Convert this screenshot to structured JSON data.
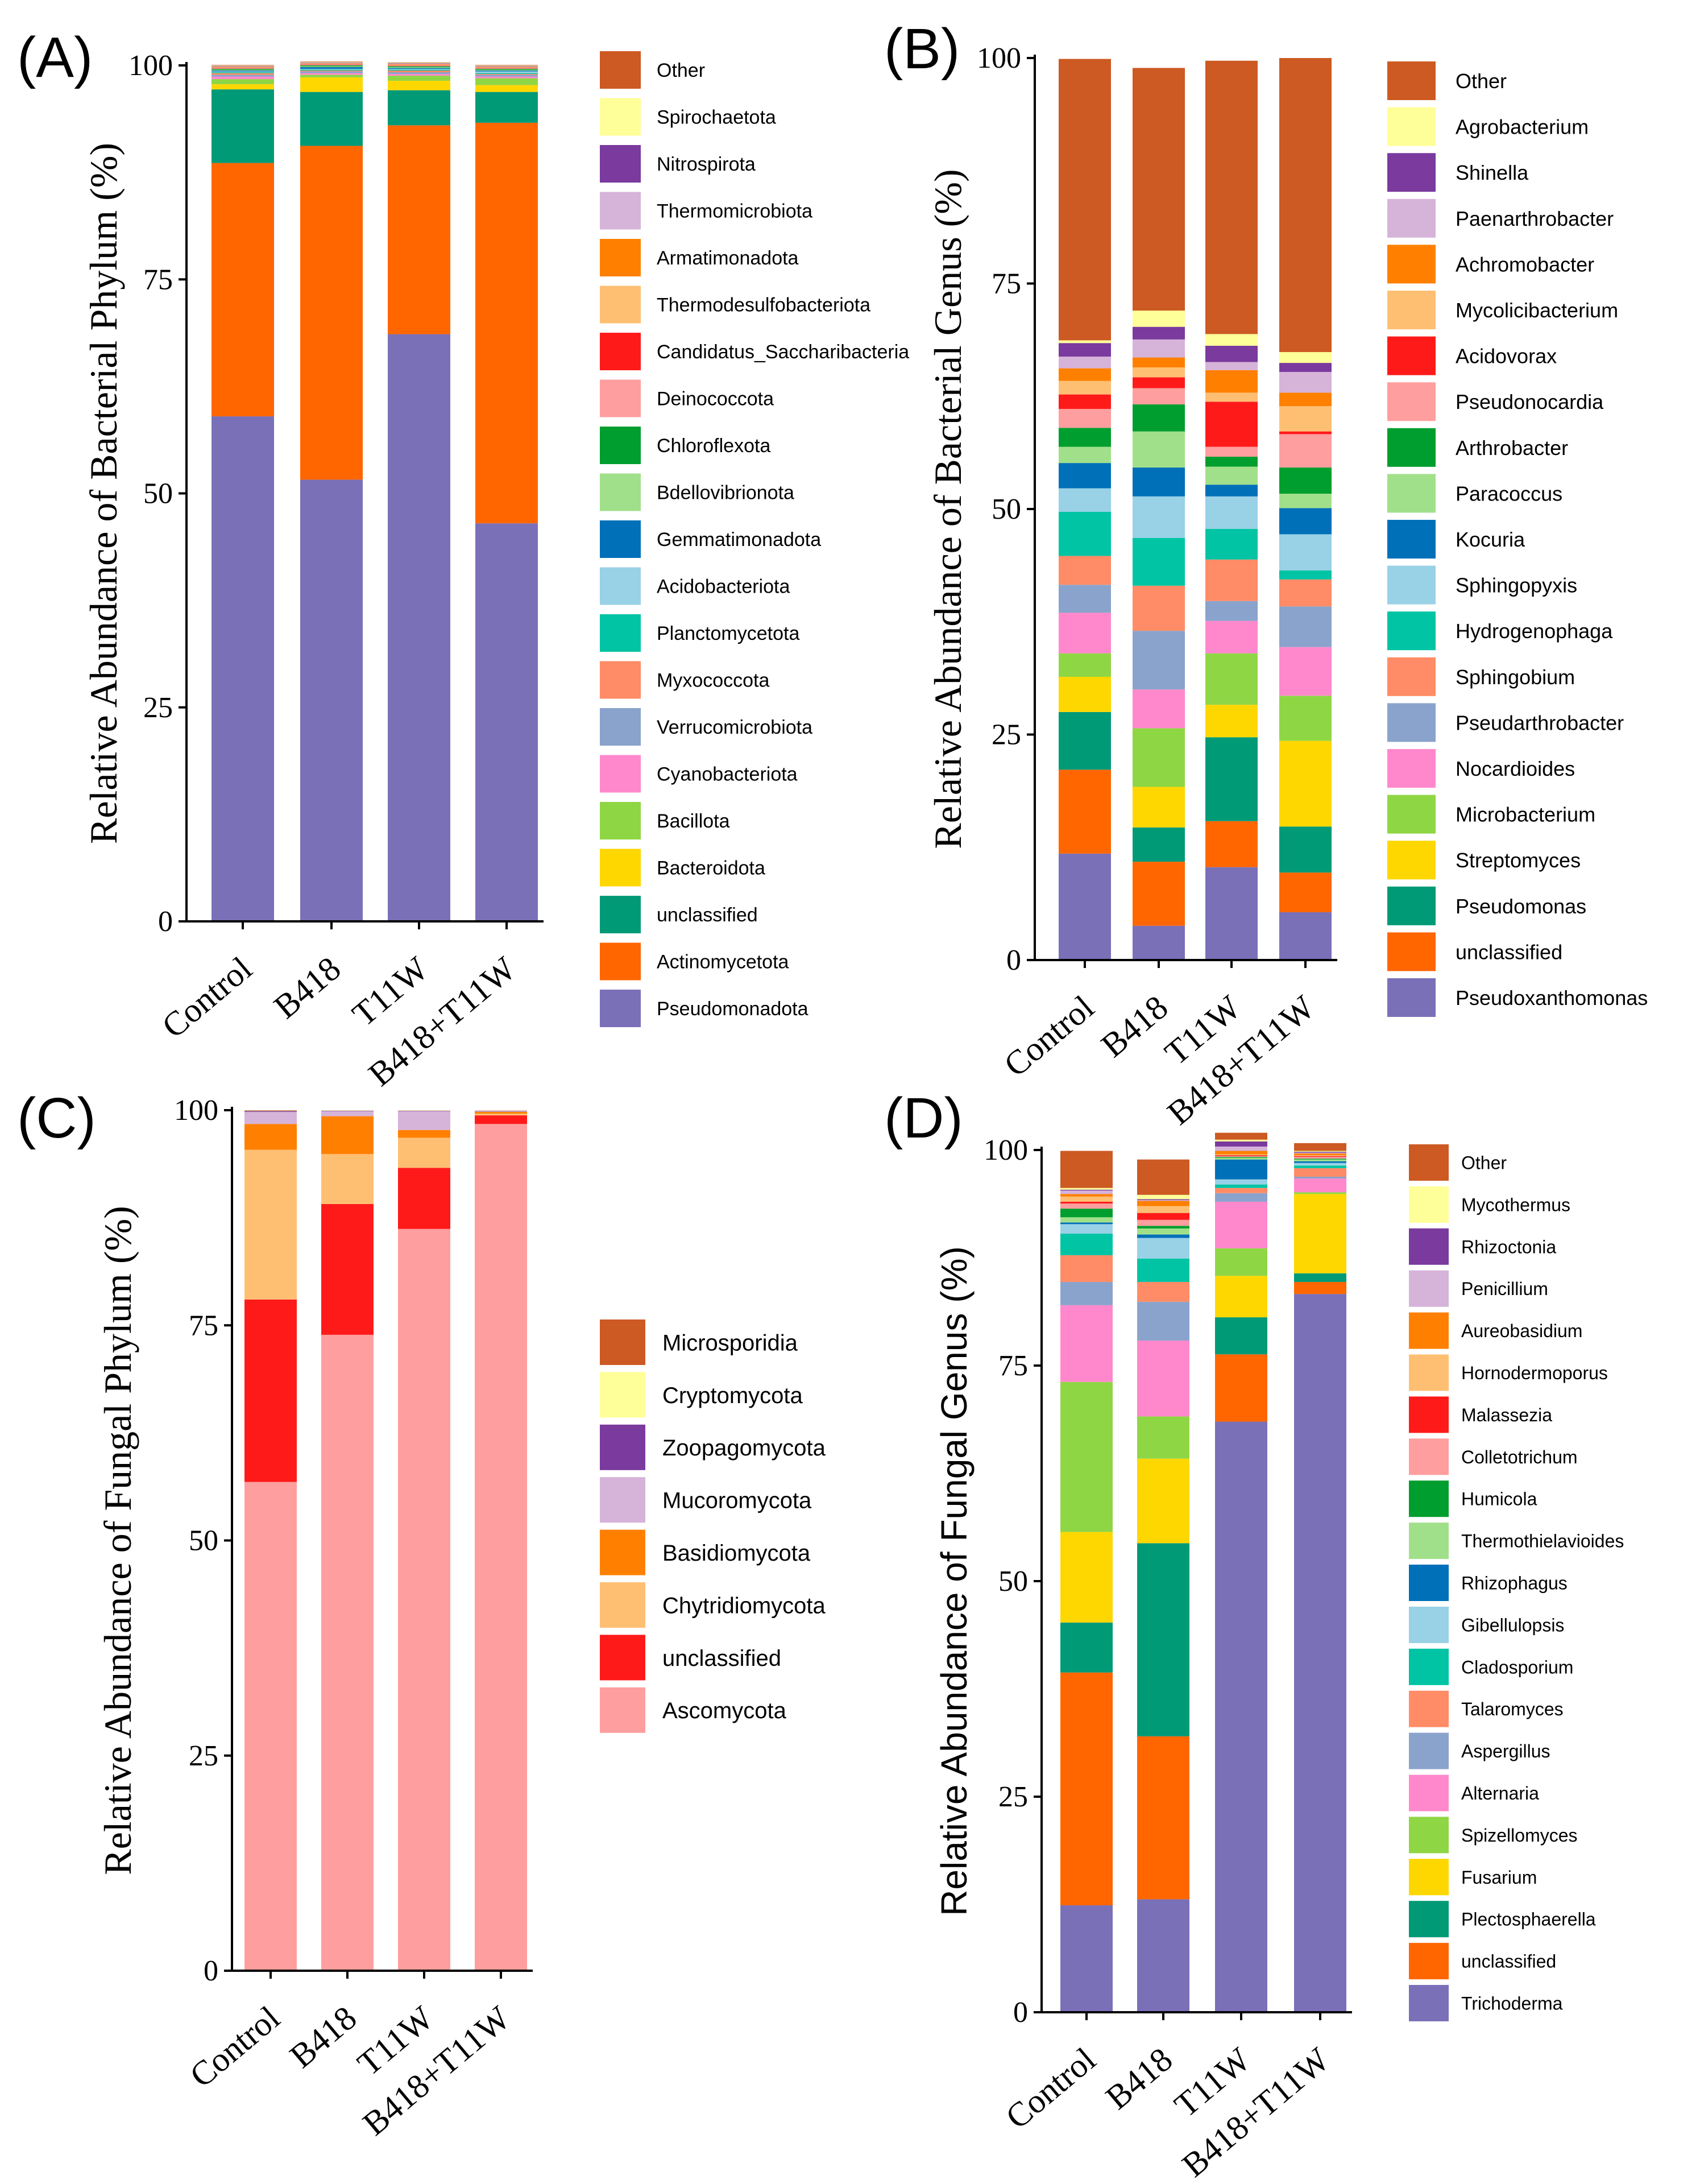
{
  "chart_data": [
    {
      "type": "stacked_bar",
      "panel": "(A)",
      "ylabel": "Relative Abundance of Bacterial Phylum (%)",
      "ylim": [
        0,
        100
      ],
      "yticks": [
        "0",
        "25",
        "50",
        "75",
        "100"
      ],
      "categories": [
        "Control",
        "B418",
        "T11W",
        "B418+T11W"
      ],
      "series": [
        {
          "name": "Pseudomonadota",
          "color": "#7a70b8",
          "values": [
            59,
            51.6,
            68.6,
            46.5
          ]
        },
        {
          "name": "Actinomycetota",
          "color": "#ff6600",
          "values": [
            29.6,
            39,
            24.4,
            46.8
          ]
        },
        {
          "name": "unclassified",
          "color": "#009a77",
          "values": [
            8.6,
            6.3,
            4.1,
            3.6
          ]
        },
        {
          "name": "Bacteroidota",
          "color": "#ffd700",
          "values": [
            0.6,
            1.7,
            1.1,
            0.8
          ]
        },
        {
          "name": "Bacillota",
          "color": "#8fd645",
          "values": [
            0.6,
            0.3,
            0.6,
            0.8
          ]
        },
        {
          "name": "Cyanobacteriota",
          "color": "#ff88cc",
          "values": [
            0.3,
            0.2,
            0.2,
            0.2
          ]
        },
        {
          "name": "Verrucomicrobiota",
          "color": "#8aa3cc",
          "values": [
            0.2,
            0.2,
            0.2,
            0.2
          ]
        },
        {
          "name": "Myxococcota",
          "color": "#ff8c66",
          "values": [
            0.2,
            0.1,
            0.2,
            0.1
          ]
        },
        {
          "name": "Planctomycetota",
          "color": "#00c4a4",
          "values": [
            0.1,
            0.1,
            0.1,
            0.1
          ]
        },
        {
          "name": "Acidobacteriota",
          "color": "#99d1e6",
          "values": [
            0.1,
            0.1,
            0.1,
            0.2
          ]
        },
        {
          "name": "Gemmatimonadota",
          "color": "#0070b8",
          "values": [
            0.1,
            0.2,
            0.1,
            0.1
          ]
        },
        {
          "name": "Bdellovibrionota",
          "color": "#a1e08a",
          "values": [
            0.1,
            0.1,
            0.1,
            0.1
          ]
        },
        {
          "name": "Chloroflexota",
          "color": "#009e2e",
          "values": [
            0.1,
            0.1,
            0.1,
            0.1
          ]
        },
        {
          "name": "Deinococcota",
          "color": "#ff9e9e",
          "values": [
            0.1,
            0.1,
            0.1,
            0.1
          ]
        },
        {
          "name": "Candidatus_Saccharibacteria",
          "color": "#ff1a1a",
          "values": [
            0.05,
            0.05,
            0.05,
            0.05
          ]
        },
        {
          "name": "Thermodesulfobacteriota",
          "color": "#ffbf73",
          "values": [
            0.05,
            0.05,
            0.05,
            0.05
          ]
        },
        {
          "name": "Armatimonadota",
          "color": "#ff8000",
          "values": [
            0.05,
            0.05,
            0.05,
            0.05
          ]
        },
        {
          "name": "Thermomicrobiota",
          "color": "#d6b3d9",
          "values": [
            0.05,
            0.05,
            0.05,
            0.05
          ]
        },
        {
          "name": "Nitrospirota",
          "color": "#7a3a9e",
          "values": [
            0.05,
            0.05,
            0.05,
            0.05
          ]
        },
        {
          "name": "Spirochaetota",
          "color": "#ffff99",
          "values": [
            0.05,
            0.05,
            0.05,
            0.05
          ]
        },
        {
          "name": "Other",
          "color": "#cc5a22",
          "values": [
            0.05,
            0.05,
            0.05,
            0.05
          ]
        }
      ]
    },
    {
      "type": "stacked_bar",
      "panel": "(B)",
      "ylabel": "Relative Abundance of Bacterial Genus (%)",
      "ylim": [
        0,
        100
      ],
      "yticks": [
        "0",
        "25",
        "50",
        "75",
        "100"
      ],
      "categories": [
        "Control",
        "B418",
        "T11W",
        "B418+T11W"
      ],
      "series": [
        {
          "name": "Pseudoxanthomonas",
          "color": "#7a70b8",
          "values": [
            11.8,
            3.8,
            10.3,
            5.3
          ]
        },
        {
          "name": "unclassified",
          "color": "#ff6600",
          "values": [
            9.3,
            7.1,
            5.1,
            4.4
          ]
        },
        {
          "name": "Pseudomonas",
          "color": "#009a77",
          "values": [
            6.4,
            3.8,
            9.3,
            5.1
          ]
        },
        {
          "name": "Streptomyces",
          "color": "#ffd700",
          "values": [
            3.9,
            4.5,
            3.6,
            9.5
          ]
        },
        {
          "name": "Microbacterium",
          "color": "#8fd645",
          "values": [
            2.6,
            6.5,
            5.7,
            5.0
          ]
        },
        {
          "name": "Nocardioides",
          "color": "#ff88cc",
          "values": [
            4.5,
            4.3,
            3.6,
            5.4
          ]
        },
        {
          "name": "Pseudarthrobacter",
          "color": "#8aa3cc",
          "values": [
            3.1,
            6.5,
            2.2,
            4.5
          ]
        },
        {
          "name": "Sphingobium",
          "color": "#ff8c66",
          "values": [
            3.2,
            5.0,
            4.6,
            3.0
          ]
        },
        {
          "name": "Hydrogenophaga",
          "color": "#00c4a4",
          "values": [
            4.9,
            5.3,
            3.4,
            1.0
          ]
        },
        {
          "name": "Sphingopyxis",
          "color": "#99d1e6",
          "values": [
            2.6,
            4.6,
            3.6,
            4.0
          ]
        },
        {
          "name": "Kocuria",
          "color": "#0070b8",
          "values": [
            2.8,
            3.2,
            1.3,
            2.9
          ]
        },
        {
          "name": "Paracoccus",
          "color": "#a1e08a",
          "values": [
            1.8,
            4.0,
            2.0,
            1.6
          ]
        },
        {
          "name": "Arthrobacter",
          "color": "#009e2e",
          "values": [
            2.1,
            3.0,
            1.1,
            2.9
          ]
        },
        {
          "name": "Pseudonocardia",
          "color": "#ff9e9e",
          "values": [
            2.1,
            1.8,
            1.1,
            3.7
          ]
        },
        {
          "name": "Acidovorax",
          "color": "#ff1a1a",
          "values": [
            1.6,
            1.2,
            5.0,
            0.3
          ]
        },
        {
          "name": "Mycolicibacterium",
          "color": "#ffbf73",
          "values": [
            1.5,
            1.1,
            1.0,
            2.8
          ]
        },
        {
          "name": "Achromobacter",
          "color": "#ff8000",
          "values": [
            1.4,
            1.1,
            2.5,
            1.5
          ]
        },
        {
          "name": "Paenarthrobacter",
          "color": "#d6b3d9",
          "values": [
            1.3,
            2.0,
            0.9,
            2.3
          ]
        },
        {
          "name": "Shinella",
          "color": "#7a3a9e",
          "values": [
            1.5,
            1.4,
            1.8,
            1.0
          ]
        },
        {
          "name": "Agrobacterium",
          "color": "#ffff99",
          "values": [
            0.3,
            1.8,
            1.3,
            1.2
          ]
        },
        {
          "name": "Other",
          "color": "#cc5a22",
          "values": [
            31.2,
            26.9,
            30.3,
            32.6
          ]
        }
      ]
    },
    {
      "type": "stacked_bar",
      "panel": "(C)",
      "ylabel": "Relative Abundance of Fungal Phylum (%)",
      "ylim": [
        0,
        100
      ],
      "yticks": [
        "0",
        "25",
        "50",
        "75",
        "100"
      ],
      "categories": [
        "Control",
        "B418",
        "T11W",
        "B418+T11W"
      ],
      "series": [
        {
          "name": "Ascomycota",
          "color": "#ff9e9e",
          "values": [
            56.8,
            73.9,
            86.2,
            98.4
          ]
        },
        {
          "name": "unclassified",
          "color": "#ff1a1a",
          "values": [
            21.2,
            15.2,
            7.1,
            1.0
          ]
        },
        {
          "name": "Chytridiomycota",
          "color": "#ffbf73",
          "values": [
            17.4,
            5.8,
            3.5,
            0.2
          ]
        },
        {
          "name": "Basidiomycota",
          "color": "#ff8000",
          "values": [
            3.0,
            4.4,
            0.9,
            0.2
          ]
        },
        {
          "name": "Mucoromycota",
          "color": "#d6b3d9",
          "values": [
            1.4,
            0.6,
            2.2,
            0.1
          ]
        },
        {
          "name": "Zoopagomycota",
          "color": "#7a3a9e",
          "values": [
            0.1,
            0.05,
            0.05,
            0.05
          ]
        },
        {
          "name": "Cryptomycota",
          "color": "#ffff99",
          "values": [
            0.05,
            0.05,
            0.05,
            0.05
          ]
        },
        {
          "name": "Microsporidia",
          "color": "#cc5a22",
          "values": [
            0.05,
            0.0,
            0.0,
            0.0
          ]
        }
      ]
    },
    {
      "type": "stacked_bar",
      "panel": "(D)",
      "ylabel": "Relative Abundance of Fungal Genus (%)",
      "ylim": [
        0,
        100
      ],
      "yticks": [
        "0",
        "25",
        "50",
        "75",
        "100"
      ],
      "categories": [
        "Control",
        "B418",
        "T11W",
        "B418+T11W"
      ],
      "series": [
        {
          "name": "Trichoderma",
          "color": "#7a70b8",
          "values": [
            12.4,
            13.1,
            68.5,
            83.3
          ]
        },
        {
          "name": "unclassified",
          "color": "#ff6600",
          "values": [
            27.0,
            18.9,
            7.8,
            1.4
          ]
        },
        {
          "name": "Plectosphaerella",
          "color": "#009a77",
          "values": [
            5.8,
            22.4,
            4.3,
            1.0
          ]
        },
        {
          "name": "Fusarium",
          "color": "#ffd700",
          "values": [
            10.5,
            9.8,
            4.8,
            9.2
          ]
        },
        {
          "name": "Spizellomyces",
          "color": "#8fd645",
          "values": [
            17.4,
            4.9,
            3.2,
            0.2
          ]
        },
        {
          "name": "Alternaria",
          "color": "#ff88cc",
          "values": [
            8.9,
            8.8,
            5.4,
            1.6
          ]
        },
        {
          "name": "Aspergillus",
          "color": "#8aa3cc",
          "values": [
            2.7,
            4.5,
            1.0,
            0.2
          ]
        },
        {
          "name": "Talaromyces",
          "color": "#ff8c66",
          "values": [
            3.1,
            2.3,
            0.6,
            1.0
          ]
        },
        {
          "name": "Cladosporium",
          "color": "#00c4a4",
          "values": [
            2.5,
            2.7,
            0.4,
            0.3
          ]
        },
        {
          "name": "Gibellulopsis",
          "color": "#99d1e6",
          "values": [
            1.1,
            2.4,
            0.6,
            0.3
          ]
        },
        {
          "name": "Rhizophagus",
          "color": "#0070b8",
          "values": [
            0.2,
            0.4,
            2.3,
            0.2
          ]
        },
        {
          "name": "Thermothielavioides",
          "color": "#a1e08a",
          "values": [
            0.6,
            0.7,
            0.2,
            0.2
          ]
        },
        {
          "name": "Humicola",
          "color": "#009e2e",
          "values": [
            1.0,
            0.3,
            0.1,
            0.1
          ]
        },
        {
          "name": "Colletotrichum",
          "color": "#ff9e9e",
          "values": [
            0.6,
            0.7,
            0.1,
            0.2
          ]
        },
        {
          "name": "Malassezia",
          "color": "#ff1a1a",
          "values": [
            0.2,
            0.8,
            0.1,
            0.1
          ]
        },
        {
          "name": "Hornodermoporus",
          "color": "#ffbf73",
          "values": [
            0.6,
            0.8,
            0.1,
            0.1
          ]
        },
        {
          "name": "Aureobasidium",
          "color": "#ff8000",
          "values": [
            0.3,
            0.6,
            0.4,
            0.2
          ]
        },
        {
          "name": "Penicillium",
          "color": "#d6b3d9",
          "values": [
            0.4,
            0.1,
            0.5,
            0.1
          ]
        },
        {
          "name": "Rhizoctonia",
          "color": "#7a3a9e",
          "values": [
            0.1,
            0.1,
            0.6,
            0.1
          ]
        },
        {
          "name": "Mycothermus",
          "color": "#ffff99",
          "values": [
            0.2,
            0.5,
            0.2,
            0.1
          ]
        },
        {
          "name": "Other",
          "color": "#cc5a22",
          "values": [
            4.3,
            4.1,
            0.8,
            0.9
          ]
        }
      ]
    }
  ]
}
